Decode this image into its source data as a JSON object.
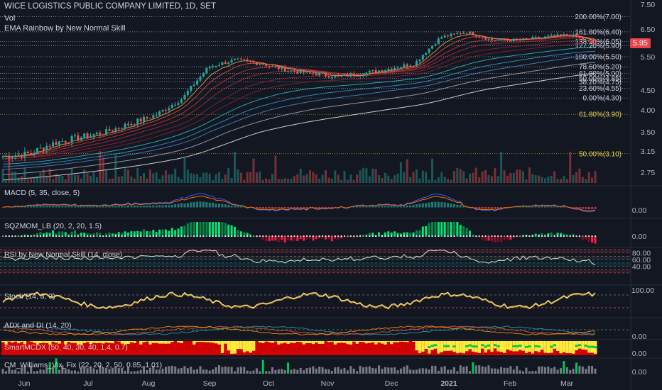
{
  "header": {
    "title": "WICE LOGISTICS PUBLIC COMPANY LIMITED, 1D, SET",
    "vol": "Vol",
    "ema": "EMA Rainbow by New Normal Skill"
  },
  "price_badge": "5.95",
  "panes": {
    "macd": "MACD (5, 35, close, 5)",
    "sqz": "SQZMOM_LB (20, 2, 20, 1.5)",
    "rsi": "RSI by New Normal Skill (14, close)",
    "stoch": "Stoch (14, 3, 3)",
    "adx": "ADX and DI (14, 20)",
    "smart": "SmartMCDX (50, 40, 30, 40, 1.4, 0.7)",
    "cmw": "CM_Williams_Vix_Fix (22, 20, 2, 50, 0.85, 1.01)"
  },
  "colors": {
    "background": "#131722",
    "up": "#26a69a",
    "down": "#ef5350",
    "fib": "#e8d44d",
    "grid": "#2a2e39"
  },
  "chart_data": [
    {
      "type": "line",
      "name": "price",
      "x_ticks": [
        "Jun",
        "Jul",
        "Aug",
        "Sep",
        "Oct",
        "Nov",
        "Dec",
        "2021",
        "Feb",
        "Mar"
      ],
      "y_ticks": [
        "7.50",
        "6.50",
        "5.50",
        "4.50",
        "4.00",
        "3.50",
        "3.15",
        "2.75"
      ],
      "close_approx": [
        3.05,
        3.1,
        3.3,
        3.4,
        3.5,
        3.7,
        3.9,
        4.3,
        5.2,
        5.4,
        5.3,
        5.1,
        5.0,
        4.9,
        5.0,
        5.15,
        5.3,
        6.2,
        6.4,
        6.1,
        6.1,
        6.2,
        6.3,
        5.95
      ],
      "fib_levels": [
        {
          "label": "200.00%(7.00)",
          "value": 7.0
        },
        {
          "label": "161.80%(6.40)",
          "value": 6.4
        },
        {
          "label": "138.20%(6.05)",
          "value": 6.05
        },
        {
          "label": "127.20%(5.90)",
          "value": 5.9
        },
        {
          "label": "100.00%(5.50)",
          "value": 5.5
        },
        {
          "label": "78.60%(5.20)",
          "value": 5.2
        },
        {
          "label": "61.80%(5.00)",
          "value": 5.0
        },
        {
          "label": "50.00%(4.85)",
          "value": 4.85
        },
        {
          "label": "38.20%(4.75)",
          "value": 4.75
        },
        {
          "label": "23.60%(4.55)",
          "value": 4.55
        },
        {
          "label": "0.00%(4.30)",
          "value": 4.3
        },
        {
          "label": "61.80%(3.90)",
          "value": 3.9
        },
        {
          "label": "50.00%(3.10)",
          "value": 3.1
        }
      ]
    },
    {
      "type": "line",
      "name": "MACD",
      "y_ticks": [
        "0.00"
      ]
    },
    {
      "type": "bar",
      "name": "SQZMOM_LB",
      "y_ticks": [
        "0.00"
      ]
    },
    {
      "type": "line",
      "name": "RSI",
      "y_ticks": [
        "80.00",
        "60.00",
        "40.00"
      ]
    },
    {
      "type": "line",
      "name": "Stoch",
      "y_ticks": [
        "100.00"
      ]
    },
    {
      "type": "line",
      "name": "ADX and DI",
      "y_ticks": [
        "0.00"
      ]
    },
    {
      "type": "bar",
      "name": "SmartMCDX",
      "y_ticks": [
        "0.00"
      ]
    },
    {
      "type": "bar",
      "name": "CM_Williams_Vix_Fix",
      "y_ticks": [
        "0.00"
      ]
    }
  ]
}
